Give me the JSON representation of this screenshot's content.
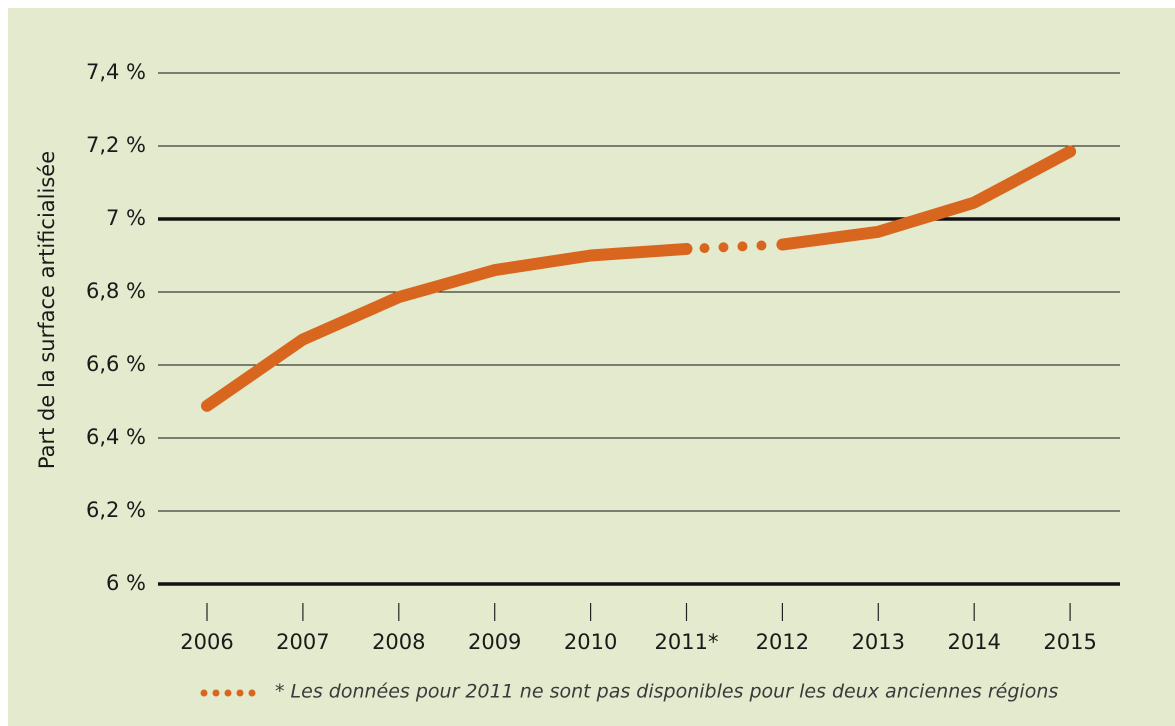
{
  "chart_data": {
    "type": "line",
    "y_label": "Part de la surface artificialisée",
    "categories": [
      "2006",
      "2007",
      "2008",
      "2009",
      "2010",
      "2011*",
      "2012",
      "2013",
      "2014",
      "2015"
    ],
    "series": [
      {
        "name": "Part de la surface artificialisée",
        "color": "#d9661f",
        "values": [
          6.488,
          6.67,
          6.786,
          6.86,
          6.9,
          6.918,
          6.93,
          6.965,
          7.045,
          7.185
        ]
      }
    ],
    "ylim": [
      6.0,
      7.4
    ],
    "yticks": [
      {
        "value": 6.0,
        "label": "6 %"
      },
      {
        "value": 6.2,
        "label": "6,2 %"
      },
      {
        "value": 6.4,
        "label": "6,4 %"
      },
      {
        "value": 6.6,
        "label": "6,6 %"
      },
      {
        "value": 6.8,
        "label": "6,8 %"
      },
      {
        "value": 7.0,
        "label": "7 %"
      },
      {
        "value": 7.2,
        "label": "7,2 %"
      },
      {
        "value": 7.4,
        "label": "7,4 %"
      }
    ],
    "grid": true,
    "footnote": "* Les données pour 2011 ne sont pas disponibles pour les deux anciennes régions"
  }
}
